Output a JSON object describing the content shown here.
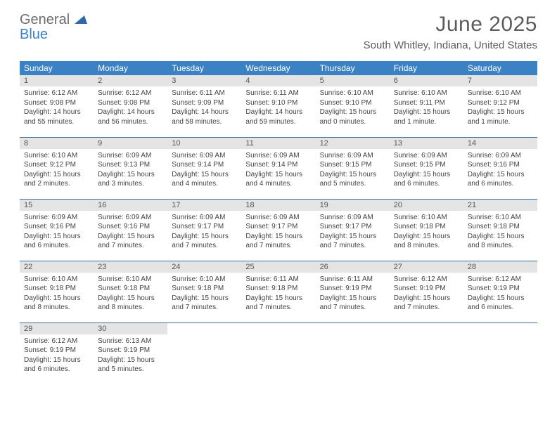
{
  "logo": {
    "general": "General",
    "blue": "Blue"
  },
  "title": "June 2025",
  "location": "South Whitley, Indiana, United States",
  "colors": {
    "header_bg": "#3b82c4",
    "header_fg": "#ffffff",
    "daynum_bg": "#e4e4e4",
    "row_border": "#3b6fa0",
    "title_color": "#5c5c5c",
    "text_color": "#444444",
    "logo_gray": "#6c6c6c",
    "logo_blue": "#3b82c4",
    "background": "#ffffff"
  },
  "weekdays": [
    "Sunday",
    "Monday",
    "Tuesday",
    "Wednesday",
    "Thursday",
    "Friday",
    "Saturday"
  ],
  "weeks": [
    [
      {
        "n": "1",
        "sr": "6:12 AM",
        "ss": "9:08 PM",
        "dl": "14 hours and 55 minutes."
      },
      {
        "n": "2",
        "sr": "6:12 AM",
        "ss": "9:08 PM",
        "dl": "14 hours and 56 minutes."
      },
      {
        "n": "3",
        "sr": "6:11 AM",
        "ss": "9:09 PM",
        "dl": "14 hours and 58 minutes."
      },
      {
        "n": "4",
        "sr": "6:11 AM",
        "ss": "9:10 PM",
        "dl": "14 hours and 59 minutes."
      },
      {
        "n": "5",
        "sr": "6:10 AM",
        "ss": "9:10 PM",
        "dl": "15 hours and 0 minutes."
      },
      {
        "n": "6",
        "sr": "6:10 AM",
        "ss": "9:11 PM",
        "dl": "15 hours and 1 minute."
      },
      {
        "n": "7",
        "sr": "6:10 AM",
        "ss": "9:12 PM",
        "dl": "15 hours and 1 minute."
      }
    ],
    [
      {
        "n": "8",
        "sr": "6:10 AM",
        "ss": "9:12 PM",
        "dl": "15 hours and 2 minutes."
      },
      {
        "n": "9",
        "sr": "6:09 AM",
        "ss": "9:13 PM",
        "dl": "15 hours and 3 minutes."
      },
      {
        "n": "10",
        "sr": "6:09 AM",
        "ss": "9:14 PM",
        "dl": "15 hours and 4 minutes."
      },
      {
        "n": "11",
        "sr": "6:09 AM",
        "ss": "9:14 PM",
        "dl": "15 hours and 4 minutes."
      },
      {
        "n": "12",
        "sr": "6:09 AM",
        "ss": "9:15 PM",
        "dl": "15 hours and 5 minutes."
      },
      {
        "n": "13",
        "sr": "6:09 AM",
        "ss": "9:15 PM",
        "dl": "15 hours and 6 minutes."
      },
      {
        "n": "14",
        "sr": "6:09 AM",
        "ss": "9:16 PM",
        "dl": "15 hours and 6 minutes."
      }
    ],
    [
      {
        "n": "15",
        "sr": "6:09 AM",
        "ss": "9:16 PM",
        "dl": "15 hours and 6 minutes."
      },
      {
        "n": "16",
        "sr": "6:09 AM",
        "ss": "9:16 PM",
        "dl": "15 hours and 7 minutes."
      },
      {
        "n": "17",
        "sr": "6:09 AM",
        "ss": "9:17 PM",
        "dl": "15 hours and 7 minutes."
      },
      {
        "n": "18",
        "sr": "6:09 AM",
        "ss": "9:17 PM",
        "dl": "15 hours and 7 minutes."
      },
      {
        "n": "19",
        "sr": "6:09 AM",
        "ss": "9:17 PM",
        "dl": "15 hours and 7 minutes."
      },
      {
        "n": "20",
        "sr": "6:10 AM",
        "ss": "9:18 PM",
        "dl": "15 hours and 8 minutes."
      },
      {
        "n": "21",
        "sr": "6:10 AM",
        "ss": "9:18 PM",
        "dl": "15 hours and 8 minutes."
      }
    ],
    [
      {
        "n": "22",
        "sr": "6:10 AM",
        "ss": "9:18 PM",
        "dl": "15 hours and 8 minutes."
      },
      {
        "n": "23",
        "sr": "6:10 AM",
        "ss": "9:18 PM",
        "dl": "15 hours and 8 minutes."
      },
      {
        "n": "24",
        "sr": "6:10 AM",
        "ss": "9:18 PM",
        "dl": "15 hours and 7 minutes."
      },
      {
        "n": "25",
        "sr": "6:11 AM",
        "ss": "9:18 PM",
        "dl": "15 hours and 7 minutes."
      },
      {
        "n": "26",
        "sr": "6:11 AM",
        "ss": "9:19 PM",
        "dl": "15 hours and 7 minutes."
      },
      {
        "n": "27",
        "sr": "6:12 AM",
        "ss": "9:19 PM",
        "dl": "15 hours and 7 minutes."
      },
      {
        "n": "28",
        "sr": "6:12 AM",
        "ss": "9:19 PM",
        "dl": "15 hours and 6 minutes."
      }
    ],
    [
      {
        "n": "29",
        "sr": "6:12 AM",
        "ss": "9:19 PM",
        "dl": "15 hours and 6 minutes."
      },
      {
        "n": "30",
        "sr": "6:13 AM",
        "ss": "9:19 PM",
        "dl": "15 hours and 5 minutes."
      },
      null,
      null,
      null,
      null,
      null
    ]
  ],
  "labels": {
    "sunrise": "Sunrise: ",
    "sunset": "Sunset: ",
    "daylight": "Daylight: "
  }
}
